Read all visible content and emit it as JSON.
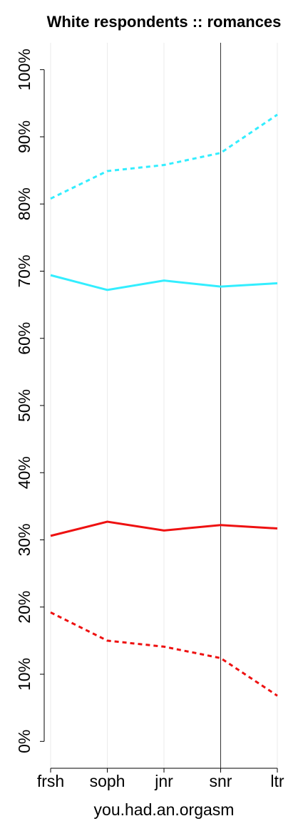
{
  "chart_data": {
    "type": "line",
    "title": "White respondents :: romances",
    "x_label": "you.had.an.orgasm",
    "categories": [
      "frsh",
      "soph",
      "jnr",
      "snr",
      "ltr"
    ],
    "series": [
      {
        "color": "#33eeff",
        "dash": true,
        "values": [
          80.8,
          84.9,
          85.8,
          87.6,
          93.3
        ]
      },
      {
        "color": "#33eeff",
        "dash": false,
        "values": [
          69.4,
          67.2,
          68.6,
          67.7,
          68.2
        ]
      },
      {
        "color": "#ee1111",
        "dash": false,
        "values": [
          30.6,
          32.7,
          31.4,
          32.2,
          31.7
        ]
      },
      {
        "color": "#ee1111",
        "dash": true,
        "values": [
          19.2,
          15.0,
          14.1,
          12.4,
          6.8
        ]
      }
    ],
    "ylim": [
      -4,
      104
    ],
    "yticks": [
      {
        "value": 0,
        "label": "0%"
      },
      {
        "value": 10,
        "label": "10%"
      },
      {
        "value": 20,
        "label": "20%"
      },
      {
        "value": 30,
        "label": "30%"
      },
      {
        "value": 40,
        "label": "40%"
      },
      {
        "value": 50,
        "label": "50%"
      },
      {
        "value": 60,
        "label": "60%"
      },
      {
        "value": 70,
        "label": "70%"
      },
      {
        "value": 80,
        "label": "80%"
      },
      {
        "value": 90,
        "label": "90%"
      },
      {
        "value": 100,
        "label": "100%"
      }
    ],
    "grid": true,
    "marked_category": "snr"
  }
}
